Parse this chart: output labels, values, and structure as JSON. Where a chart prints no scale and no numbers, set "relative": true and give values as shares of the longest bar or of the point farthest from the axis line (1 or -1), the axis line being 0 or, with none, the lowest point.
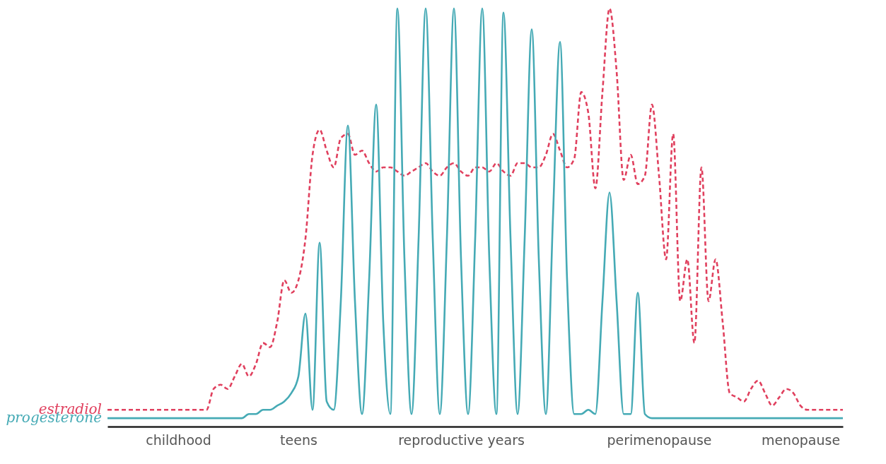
{
  "chart_data": {
    "type": "line",
    "relative": true,
    "legend": false,
    "categories": [
      null,
      null,
      null,
      null,
      null,
      null,
      null,
      null,
      null,
      null,
      "childhood",
      null,
      null,
      null,
      null,
      null,
      null,
      null,
      null,
      null,
      null,
      null,
      null,
      null,
      null,
      null,
      null,
      "teens",
      null,
      null,
      null,
      null,
      null,
      null,
      null,
      null,
      null,
      null,
      null,
      null,
      null,
      null,
      null,
      null,
      null,
      null,
      null,
      null,
      null,
      null,
      "reproductive years",
      null,
      null,
      null,
      null,
      null,
      null,
      null,
      null,
      null,
      null,
      null,
      null,
      null,
      null,
      null,
      null,
      null,
      null,
      null,
      null,
      null,
      null,
      null,
      null,
      null,
      null,
      null,
      "perimenopause",
      null,
      null,
      null,
      null,
      null,
      null,
      null,
      null,
      null,
      null,
      null,
      null,
      null,
      null,
      null,
      null,
      null,
      null,
      null,
      "menopause",
      null,
      null,
      null,
      null,
      null,
      null
    ],
    "series": [
      {
        "name": "estradiol",
        "color": "#e0405e",
        "line_style": "dashed",
        "values": [
          0.04,
          0.04,
          0.04,
          0.04,
          0.04,
          0.04,
          0.04,
          0.04,
          0.04,
          0.04,
          0.04,
          0.04,
          0.04,
          0.04,
          0.04,
          0.09,
          0.1,
          0.09,
          0.12,
          0.15,
          0.12,
          0.15,
          0.2,
          0.19,
          0.25,
          0.35,
          0.32,
          0.35,
          0.45,
          0.65,
          0.71,
          0.66,
          0.62,
          0.69,
          0.7,
          0.65,
          0.66,
          0.63,
          0.61,
          0.62,
          0.62,
          0.61,
          0.6,
          0.61,
          0.62,
          0.63,
          0.61,
          0.6,
          0.62,
          0.63,
          0.61,
          0.6,
          0.62,
          0.62,
          0.61,
          0.63,
          0.61,
          0.6,
          0.63,
          0.63,
          0.62,
          0.62,
          0.65,
          0.7,
          0.66,
          0.62,
          0.64,
          0.8,
          0.75,
          0.57,
          0.8,
          1.0,
          0.85,
          0.59,
          0.65,
          0.58,
          0.6,
          0.77,
          0.6,
          0.4,
          0.7,
          0.3,
          0.4,
          0.2,
          0.62,
          0.3,
          0.4,
          0.25,
          0.08,
          0.07,
          0.06,
          0.09,
          0.11,
          0.08,
          0.05,
          0.07,
          0.09,
          0.08,
          0.05,
          0.04,
          0.04,
          0.04,
          0.04,
          0.04,
          0.04
        ]
      },
      {
        "name": "progesterone",
        "color": "#45aab5",
        "line_style": "solid",
        "values": [
          0.02,
          0.02,
          0.02,
          0.02,
          0.02,
          0.02,
          0.02,
          0.02,
          0.02,
          0.02,
          0.02,
          0.02,
          0.02,
          0.02,
          0.02,
          0.02,
          0.02,
          0.02,
          0.02,
          0.02,
          0.03,
          0.03,
          0.04,
          0.04,
          0.05,
          0.06,
          0.08,
          0.12,
          0.27,
          0.04,
          0.44,
          0.06,
          0.04,
          0.3,
          0.72,
          0.3,
          0.03,
          0.35,
          0.77,
          0.25,
          0.03,
          1.0,
          0.4,
          0.03,
          0.45,
          1.0,
          0.45,
          0.03,
          0.45,
          1.0,
          0.4,
          0.03,
          0.45,
          1.0,
          0.4,
          0.03,
          0.99,
          0.45,
          0.03,
          0.45,
          0.95,
          0.4,
          0.03,
          0.5,
          0.92,
          0.35,
          0.03,
          0.03,
          0.04,
          0.03,
          0.3,
          0.56,
          0.3,
          0.03,
          0.03,
          0.32,
          0.03,
          0.02,
          0.02,
          0.02,
          0.02,
          0.02,
          0.02,
          0.02,
          0.02,
          0.02,
          0.02,
          0.02,
          0.02,
          0.02,
          0.02,
          0.02,
          0.02,
          0.02,
          0.02,
          0.02,
          0.02,
          0.02,
          0.02,
          0.02,
          0.02,
          0.02,
          0.02,
          0.02,
          0.02
        ]
      }
    ]
  }
}
